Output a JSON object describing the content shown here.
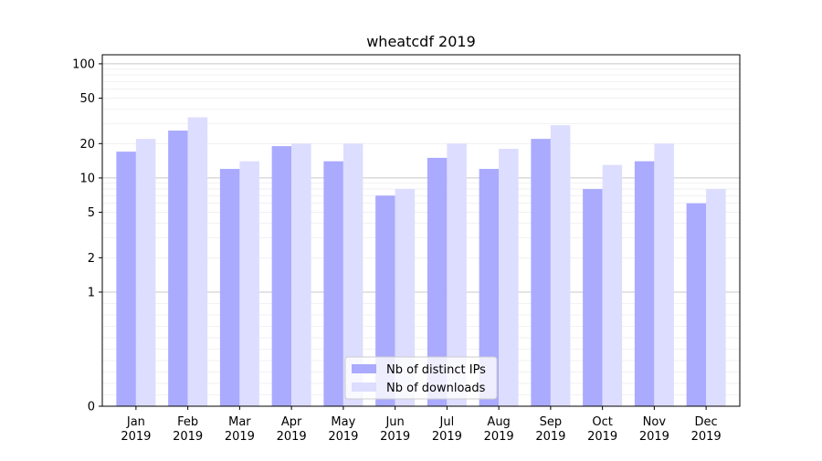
{
  "chart_data": {
    "type": "bar",
    "title": "wheatcdf 2019",
    "xlabel": "",
    "ylabel": "",
    "yscale": "symlog",
    "ylim": [
      0,
      120
    ],
    "yticks": [
      0,
      1,
      2,
      5,
      10,
      20,
      50,
      100
    ],
    "ytick_labels": [
      "0",
      "1",
      "2",
      "5",
      "10",
      "20",
      "50",
      "100"
    ],
    "categories": [
      {
        "month": "Jan",
        "year": "2019"
      },
      {
        "month": "Feb",
        "year": "2019"
      },
      {
        "month": "Mar",
        "year": "2019"
      },
      {
        "month": "Apr",
        "year": "2019"
      },
      {
        "month": "May",
        "year": "2019"
      },
      {
        "month": "Jun",
        "year": "2019"
      },
      {
        "month": "Jul",
        "year": "2019"
      },
      {
        "month": "Aug",
        "year": "2019"
      },
      {
        "month": "Sep",
        "year": "2019"
      },
      {
        "month": "Oct",
        "year": "2019"
      },
      {
        "month": "Nov",
        "year": "2019"
      },
      {
        "month": "Dec",
        "year": "2019"
      }
    ],
    "series": [
      {
        "name": "Nb of distinct IPs",
        "color": "#aaaaff",
        "values": [
          17,
          26,
          12,
          19,
          14,
          7,
          15,
          12,
          22,
          8,
          14,
          6
        ]
      },
      {
        "name": "Nb of downloads",
        "color": "#ddddff",
        "values": [
          22,
          34,
          14,
          20,
          20,
          8,
          20,
          18,
          29,
          13,
          20,
          8
        ]
      }
    ],
    "grid": "horizontal",
    "legend_position": "bottom-center"
  }
}
